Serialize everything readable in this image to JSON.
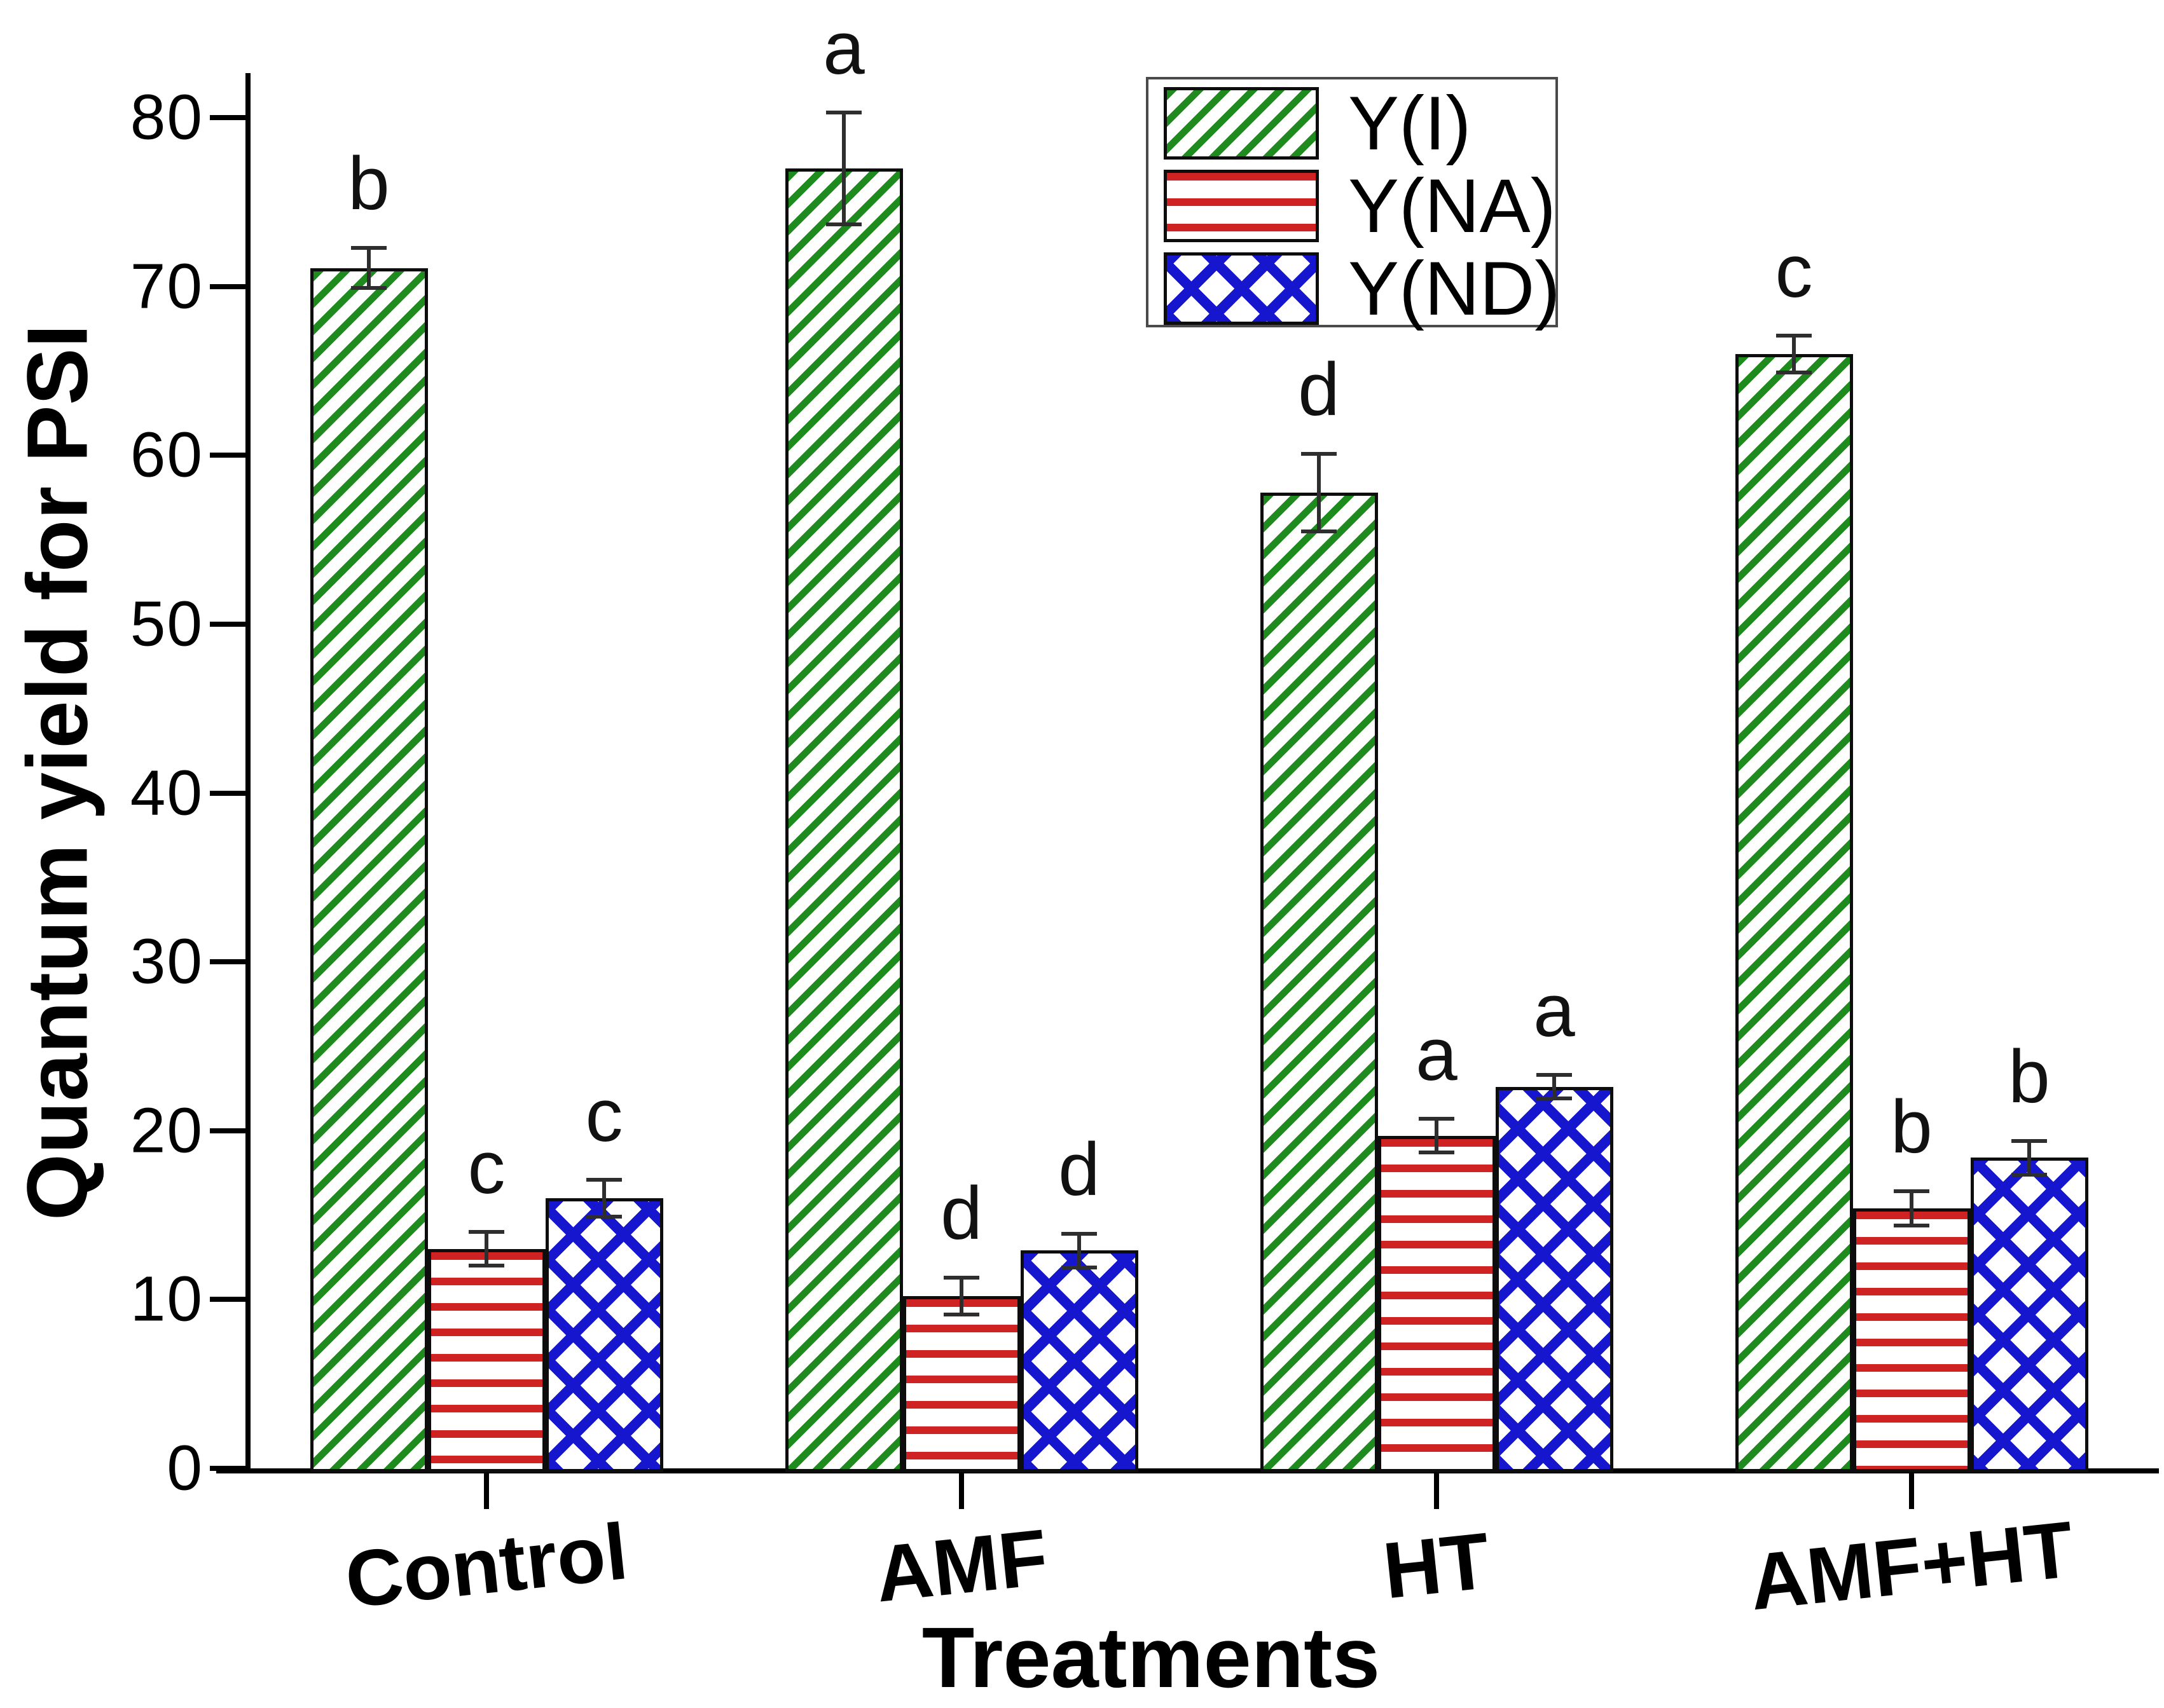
{
  "chart_data": {
    "type": "bar",
    "title": "",
    "xlabel": "Treatments",
    "ylabel": "Quantum yield for PSI",
    "categories": [
      "Control",
      "AMF",
      "HT",
      "AMF+HT"
    ],
    "series": [
      {
        "name": "Y(I)",
        "color": "#1f8b1f",
        "hatch": "diagonal",
        "values": [
          71.1,
          77.0,
          57.8,
          66.0
        ],
        "errors": [
          1.2,
          3.3,
          2.3,
          1.1
        ],
        "letters": [
          "b",
          "a",
          "d",
          "c"
        ]
      },
      {
        "name": "Y(NA)",
        "color": "#cf2323",
        "hatch": "horizontal",
        "values": [
          13.0,
          10.2,
          19.7,
          15.4
        ],
        "errors": [
          1.0,
          1.1,
          1.0,
          1.0
        ],
        "letters": [
          "c",
          "d",
          "a",
          "b"
        ]
      },
      {
        "name": "Y(ND)",
        "color": "#1616cf",
        "hatch": "crosshatch",
        "values": [
          16.0,
          12.9,
          22.6,
          18.4
        ],
        "errors": [
          1.1,
          1.0,
          0.7,
          1.0
        ],
        "letters": [
          "c",
          "d",
          "a",
          "b"
        ]
      }
    ],
    "ylim": [
      0,
      82
    ],
    "yticks": [
      0,
      10,
      20,
      30,
      40,
      50,
      60,
      70,
      80
    ],
    "grid": false,
    "legend_position": "top-center",
    "error_bars": true
  }
}
